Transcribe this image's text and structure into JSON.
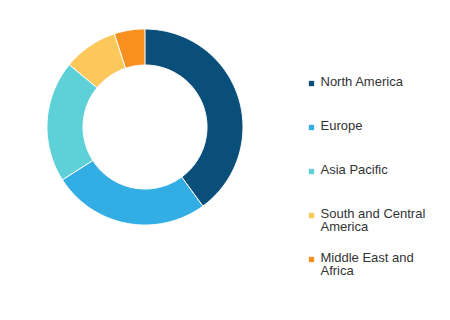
{
  "chart_data": {
    "type": "donut",
    "categories": [
      "North America",
      "Europe",
      "Asia Pacific",
      "South and Central America",
      "Middle East and Africa"
    ],
    "values": [
      40,
      26,
      20,
      9,
      5
    ],
    "colors": [
      "#0a4f7a",
      "#33aee4",
      "#5dd0d8",
      "#fcc85a",
      "#f7901e"
    ],
    "legend": "right"
  }
}
